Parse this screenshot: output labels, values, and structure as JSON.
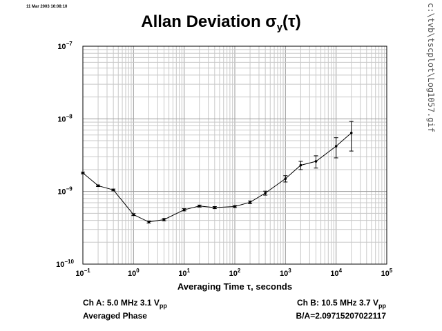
{
  "timestamp": "11 Mar 2003 16:08:10",
  "file_path": "c:\\tvb\\tscplot\\Log1057.gif",
  "info": {
    "ch_a": "Ch A: 5.0 MHz 3.1 V",
    "ch_a_sub": "pp",
    "averaging": "Averaged Phase",
    "ch_b": "Ch B: 10.5 MHz 3.7 V",
    "ch_b_sub": "pp",
    "ratio": "B/A=2.09715207022117"
  },
  "chart_data": {
    "type": "line",
    "title": "Allan Deviation σy(τ)",
    "title_main": "Allan Deviation σ",
    "title_sub": "y",
    "title_tail": "(τ)",
    "xlabel": "Averaging Time τ, seconds",
    "ylabel": "",
    "xscale": "log",
    "yscale": "log",
    "xlim": [
      0.1,
      100000
    ],
    "ylim": [
      1e-10,
      1e-07
    ],
    "grid": true,
    "x_ticks": [
      {
        "base": "10",
        "exp": "−1"
      },
      {
        "base": "10",
        "exp": "0"
      },
      {
        "base": "10",
        "exp": "1"
      },
      {
        "base": "10",
        "exp": "2"
      },
      {
        "base": "10",
        "exp": "3"
      },
      {
        "base": "10",
        "exp": "4"
      },
      {
        "base": "10",
        "exp": "5"
      }
    ],
    "y_ticks": [
      {
        "base": "10",
        "exp": "−7"
      },
      {
        "base": "10",
        "exp": "−8"
      },
      {
        "base": "10",
        "exp": "−9"
      },
      {
        "base": "10",
        "exp": "−10"
      }
    ],
    "series": [
      {
        "x": [
          0.1,
          0.2,
          0.4,
          1,
          2,
          4,
          10,
          20,
          40,
          100,
          200,
          400,
          1000,
          2000,
          4000,
          10000,
          20000
        ],
        "y": [
          1.8e-09,
          1.2e-09,
          1.05e-09,
          4.8e-10,
          3.8e-10,
          4.1e-10,
          5.6e-10,
          6.3e-10,
          6e-10,
          6.2e-10,
          7.1e-10,
          9.5e-10,
          1.5e-09,
          2.3e-09,
          2.6e-09,
          4.2e-09,
          6.4e-09
        ],
        "y_err": [
          5e-11,
          3e-11,
          3e-11,
          1.5e-11,
          1.2e-11,
          1.5e-11,
          2e-11,
          2e-11,
          2e-11,
          2e-11,
          3e-11,
          6e-11,
          1.5e-10,
          3e-10,
          5e-10,
          1.3e-09,
          2.8e-09
        ]
      }
    ]
  }
}
